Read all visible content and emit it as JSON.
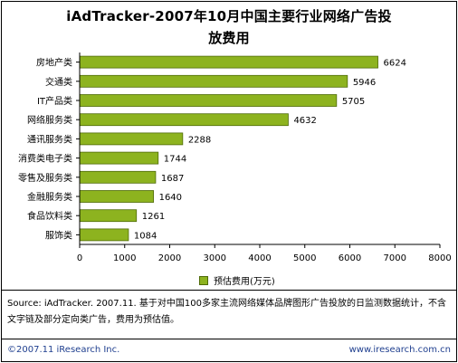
{
  "title_lines": [
    "iAdTracker-2007年10月中国主要行业网络广告投",
    "放费用"
  ],
  "legend_label": "预估费用(万元)",
  "note": "Source:  iAdTracker. 2007.11. 基于对中国100多家主流网络媒体品牌图形广告投放的日监测数据统计，不含文字链及部分定向类广告，费用为预估值。",
  "footer": {
    "left": "©2007.11 iResearch Inc.",
    "right": "www.iresearch.com.cn"
  },
  "colors": {
    "bar": "#8db31f",
    "bar_border": "#4e6a07",
    "footer_text": "#1f3f8f"
  },
  "chart_data": {
    "type": "bar",
    "orientation": "horizontal",
    "categories": [
      "房地产类",
      "交通类",
      "IT产品类",
      "网络服务类",
      "通讯服务类",
      "消费类电子类",
      "零售及服务类",
      "金融服务类",
      "食品饮料类",
      "服饰类"
    ],
    "series": [
      {
        "name": "预估费用(万元)",
        "values": [
          6624,
          5946,
          5705,
          4632,
          2288,
          1744,
          1687,
          1640,
          1261,
          1084
        ]
      }
    ],
    "xlim": [
      0,
      8000
    ],
    "xticks": [
      0,
      1000,
      2000,
      3000,
      4000,
      5000,
      6000,
      7000,
      8000
    ],
    "grid": false,
    "legend_position": "bottom-center"
  }
}
